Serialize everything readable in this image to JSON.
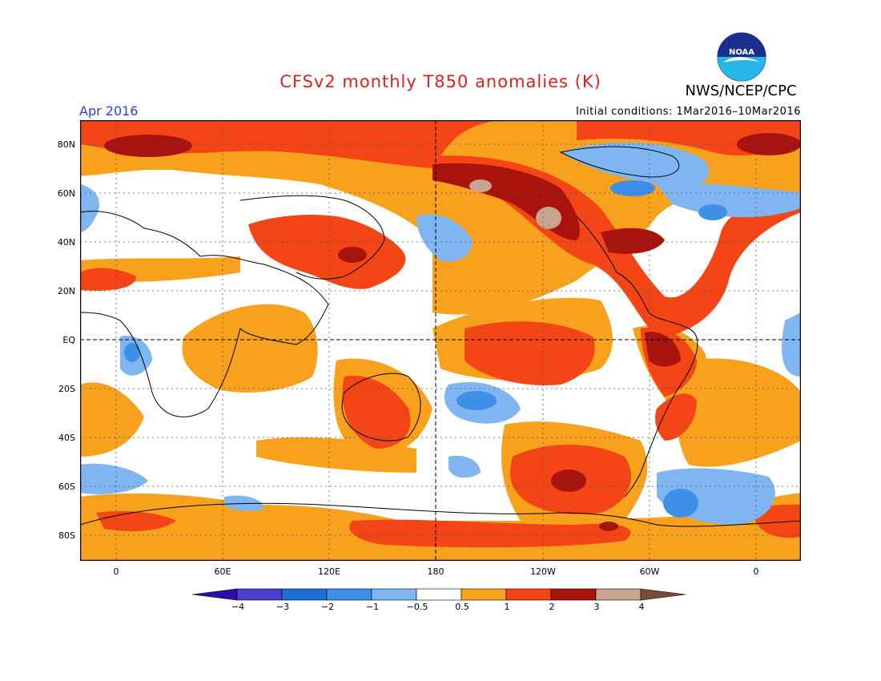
{
  "title": "CFSv2 monthly T850 anomalies (K)",
  "organization": "NWS/NCEP/CPC",
  "logo_text": "NOAA",
  "valid_month": "Apr 2016",
  "initial_conditions": "Initial conditions: 1Mar2016–10Mar2016",
  "lat_labels": [
    "80N",
    "60N",
    "40N",
    "20N",
    "EQ",
    "20S",
    "40S",
    "60S",
    "80S"
  ],
  "lon_labels": [
    "0",
    "60E",
    "120E",
    "180",
    "120W",
    "60W",
    "0"
  ],
  "colorbar": {
    "labels": [
      "−4",
      "−3",
      "−2",
      "−1",
      "−0.5",
      "0.5",
      "1",
      "2",
      "3",
      "4"
    ],
    "colors": [
      "#2b0fa8",
      "#4a3fd0",
      "#1d6fd8",
      "#3d8fe8",
      "#7fb6f2",
      "#ffffff",
      "#f7a11c",
      "#f34515",
      "#a8130d",
      "#c9a392",
      "#7a4a3a"
    ]
  },
  "map_colors": {
    "warm_05_1": "#f7a11c",
    "warm_1_2": "#f34515",
    "warm_2_3": "#a8130d",
    "warm_3_4": "#c9a392",
    "cool_05_1": "#7fb6f2",
    "cool_1_2": "#3d8fe8"
  }
}
